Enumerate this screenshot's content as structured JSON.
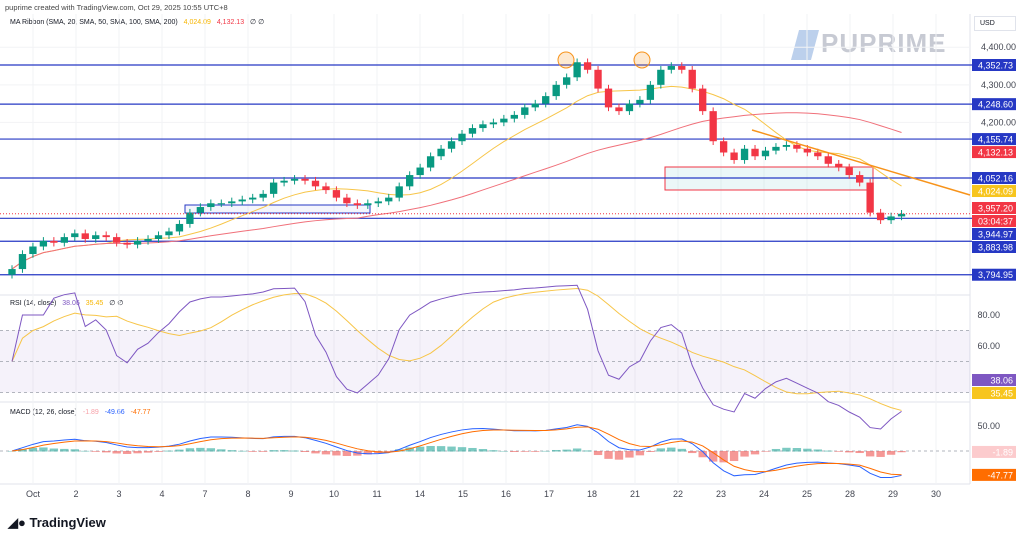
{
  "header": {
    "credit": "puprime created with TradingView.com, Oct 29, 2025 10:55 UTC+8"
  },
  "ma_legend": {
    "name": "MA Ribbon (SMA, 20, SMA, 50, SMA, 100, SMA, 200)",
    "v1": "4,024.09",
    "v2": "4,132.13",
    "v3": "∅",
    "v4": "∅"
  },
  "rsi_legend": {
    "name": "RSI (14, close)",
    "v1": "38.06",
    "v2": "35.45",
    "v3": "∅",
    "v4": "∅"
  },
  "macd_legend": {
    "name": "MACD (12, 26, close)",
    "v1": "-1.89",
    "v2": "-49.66",
    "v3": "-47.77"
  },
  "currency": "USD",
  "watermark": "PUPRIME",
  "footer_logo": "TradingView",
  "colors": {
    "up": "#089981",
    "down": "#f23645",
    "level": "#2638c4",
    "sma_fast": "#f7c548",
    "sma_slow": "#f0707a",
    "trend": "#f7931a",
    "rsi": "#7e57c2",
    "macd": "#2962ff",
    "signal": "#ff6d00"
  },
  "chart_data": {
    "type": "candlestick",
    "x_ticks": [
      "Oct",
      "2",
      "3",
      "4",
      "7",
      "8",
      "9",
      "10",
      "11",
      "14",
      "15",
      "16",
      "17",
      "18",
      "21",
      "22",
      "23",
      "24",
      "25",
      "28",
      "29",
      "30"
    ],
    "price_ticks": [
      "4,400.00",
      "4,300.00",
      "4,200.00"
    ],
    "closes": [
      3810,
      3850,
      3870,
      3885,
      3880,
      3895,
      3905,
      3890,
      3900,
      3895,
      3880,
      3875,
      3885,
      3890,
      3900,
      3910,
      3930,
      3960,
      3975,
      3985,
      3985,
      3990,
      3995,
      4000,
      4010,
      4040,
      4045,
      4050,
      4045,
      4030,
      4020,
      4000,
      3985,
      3980,
      3985,
      3990,
      4000,
      4030,
      4060,
      4080,
      4110,
      4130,
      4150,
      4170,
      4185,
      4195,
      4200,
      4210,
      4220,
      4240,
      4250,
      4270,
      4300,
      4320,
      4360,
      4340,
      4290,
      4240,
      4230,
      4250,
      4260,
      4300,
      4340,
      4350,
      4340,
      4290,
      4230,
      4150,
      4120,
      4100,
      4130,
      4110,
      4125,
      4135,
      4140,
      4130,
      4120,
      4110,
      4090,
      4080,
      4060,
      4040,
      3960,
      3940,
      3950,
      3957
    ],
    "levels": [
      "4,352.73",
      "4,248.60",
      "4,155.74",
      "4,052.16",
      "3,944.97",
      "3,883.98",
      "3,794.95"
    ],
    "level_values": [
      4352.73,
      4248.6,
      4155.74,
      4052.16,
      3944.97,
      3883.98,
      3794.95
    ],
    "last_price": "3,957.20",
    "countdown": "03:04:37",
    "sma_fast_last": "4,024.09",
    "sma_slow_last": "4,132.13",
    "rsi_ticks": [
      "80.00",
      "60.00"
    ],
    "rsi_last": "38.06",
    "rsi_ma_last": "35.45",
    "macd_ticks": [
      "50.00"
    ],
    "macd_hist_last": "-1.89",
    "macd_last": "-47.77"
  }
}
